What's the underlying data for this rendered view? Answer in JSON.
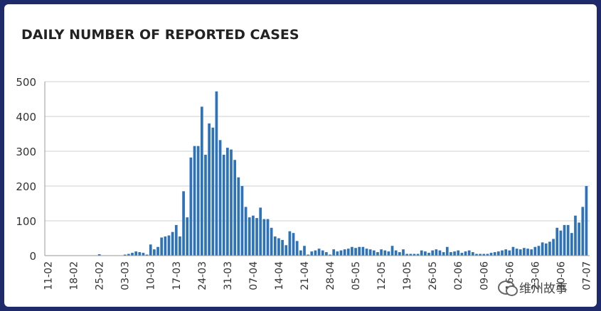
{
  "chart_data": {
    "type": "bar",
    "title": "DAILY NUMBER OF REPORTED CASES",
    "xlabel": "",
    "ylabel": "",
    "ylim": [
      0,
      500
    ],
    "yticks": [
      0,
      100,
      200,
      300,
      400,
      500
    ],
    "grid": true,
    "color": "#2e72b8",
    "xtick_labels": [
      "11-02",
      "18-02",
      "25-02",
      "03-03",
      "10-03",
      "17-03",
      "24-03",
      "31-03",
      "07-04",
      "14-04",
      "21-04",
      "28-04",
      "05-05",
      "12-05",
      "19-05",
      "26-05",
      "02-06",
      "09-06",
      "16-06",
      "23-06",
      "30-06",
      "07-07"
    ],
    "x_start": "2020-02-11",
    "values": [
      0,
      0,
      0,
      0,
      0,
      0,
      0,
      0,
      0,
      0,
      0,
      0,
      0,
      0,
      4,
      0,
      0,
      0,
      0,
      0,
      0,
      3,
      5,
      8,
      12,
      10,
      8,
      3,
      32,
      18,
      25,
      52,
      55,
      58,
      68,
      88,
      55,
      185,
      110,
      282,
      315,
      315,
      428,
      290,
      380,
      368,
      472,
      332,
      290,
      310,
      305,
      275,
      225,
      200,
      140,
      110,
      115,
      108,
      138,
      105,
      105,
      80,
      55,
      50,
      45,
      30,
      70,
      65,
      42,
      15,
      28,
      3,
      12,
      15,
      20,
      15,
      10,
      3,
      18,
      12,
      15,
      18,
      20,
      25,
      22,
      25,
      25,
      20,
      18,
      15,
      10,
      18,
      15,
      12,
      28,
      15,
      10,
      18,
      5,
      5,
      5,
      5,
      15,
      12,
      8,
      15,
      18,
      15,
      10,
      25,
      10,
      12,
      15,
      8,
      12,
      15,
      10,
      5,
      5,
      5,
      5,
      8,
      10,
      12,
      15,
      18,
      15,
      25,
      20,
      18,
      22,
      20,
      18,
      25,
      28,
      38,
      35,
      40,
      48,
      80,
      72,
      88,
      88,
      65,
      115,
      95,
      140,
      200
    ]
  },
  "watermark": {
    "text": "维州故事",
    "icon": "wechat-logo-icon"
  }
}
